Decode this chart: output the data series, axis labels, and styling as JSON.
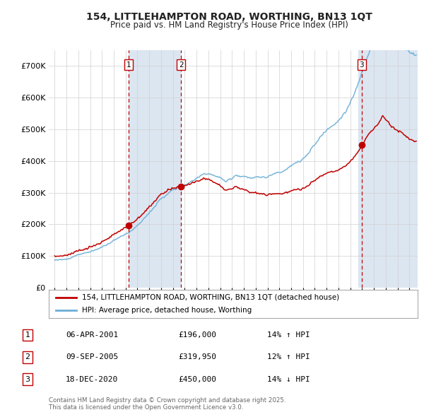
{
  "title": "154, LITTLEHAMPTON ROAD, WORTHING, BN13 1QT",
  "subtitle": "Price paid vs. HM Land Registry's House Price Index (HPI)",
  "legend_line1": "154, LITTLEHAMPTON ROAD, WORTHING, BN13 1QT (detached house)",
  "legend_line2": "HPI: Average price, detached house, Worthing",
  "footer": "Contains HM Land Registry data © Crown copyright and database right 2025.\nThis data is licensed under the Open Government Licence v3.0.",
  "transactions": [
    {
      "num": 1,
      "date": "06-APR-2001",
      "price": 196000,
      "pct": "14%",
      "dir": "↑",
      "x": 2001.26
    },
    {
      "num": 2,
      "date": "09-SEP-2005",
      "price": 319950,
      "pct": "12%",
      "dir": "↑",
      "x": 2005.69
    },
    {
      "num": 3,
      "date": "18-DEC-2020",
      "price": 450000,
      "pct": "14%",
      "dir": "↓",
      "x": 2020.97
    }
  ],
  "hpi_color": "#6baed6",
  "price_color": "#c00000",
  "dot_color": "#c00000",
  "vline_color": "#c00000",
  "shade_color": "#dce6f1",
  "bg_color": "#ffffff",
  "grid_color": "#d0d0d0",
  "ylim": [
    0,
    750000
  ],
  "yticks": [
    0,
    100000,
    200000,
    300000,
    400000,
    500000,
    600000,
    700000
  ],
  "xlim_start": 1994.5,
  "xlim_end": 2025.7
}
